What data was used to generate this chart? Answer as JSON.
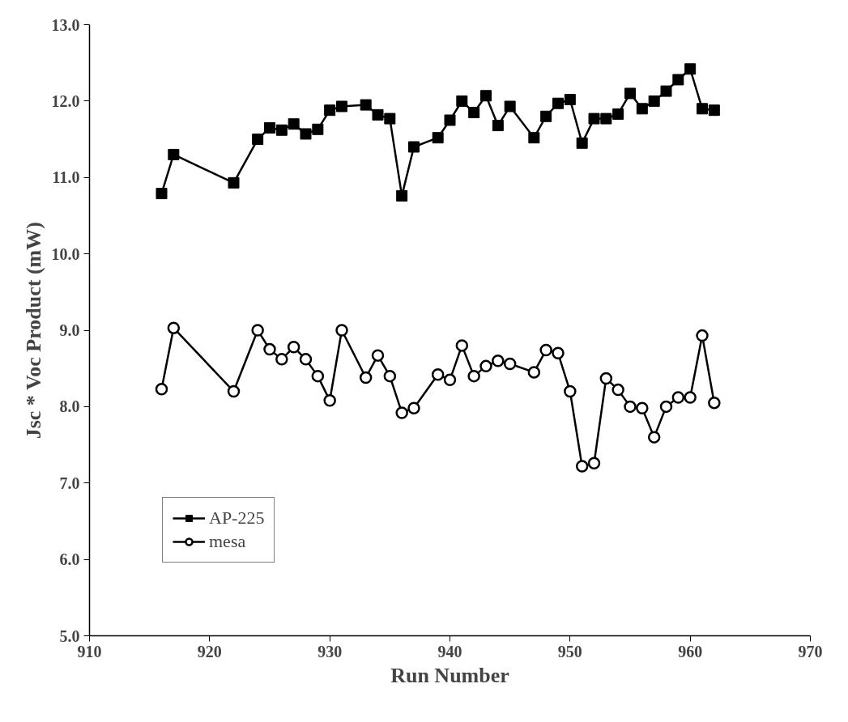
{
  "chart_data": {
    "type": "line",
    "xlabel": "Run Number",
    "ylabel": "Jsc * Voc Product (mW)",
    "xlim": [
      910,
      970
    ],
    "xticks": [
      910,
      920,
      930,
      940,
      950,
      960,
      970
    ],
    "ylim": [
      5,
      13
    ],
    "yticks": [
      {
        "value": 5,
        "label": "5.0"
      },
      {
        "value": 6,
        "label": "6.0"
      },
      {
        "value": 7,
        "label": "7.0"
      },
      {
        "value": 8,
        "label": "8.0"
      },
      {
        "value": 9,
        "label": "9.0"
      },
      {
        "value": 10,
        "label": "10.0"
      },
      {
        "value": 11,
        "label": "11.0"
      },
      {
        "value": 12,
        "label": "12.0"
      },
      {
        "value": 13,
        "label": "13.0"
      }
    ],
    "grid": false,
    "legend": "bottom left",
    "x": [
      916,
      917,
      922,
      924,
      925,
      926,
      927,
      928,
      929,
      930,
      931,
      933,
      934,
      935,
      936,
      937,
      939,
      940,
      941,
      942,
      943,
      944,
      945,
      947,
      948,
      949,
      950,
      951,
      952,
      953,
      954,
      955,
      956,
      957,
      958,
      959,
      960,
      961,
      962
    ],
    "series": [
      {
        "name": "AP-225",
        "color": "#000000",
        "marker": "square",
        "values": [
          10.79,
          11.3,
          10.93,
          11.5,
          11.65,
          11.62,
          11.7,
          11.57,
          11.63,
          11.88,
          11.93,
          11.95,
          11.82,
          11.77,
          10.76,
          11.4,
          11.52,
          11.75,
          12.0,
          11.85,
          12.07,
          11.68,
          11.93,
          11.52,
          11.8,
          11.97,
          12.02,
          11.45,
          11.77,
          11.77,
          11.83,
          12.1,
          11.9,
          12.0,
          12.13,
          12.28,
          12.42,
          11.9,
          11.88
        ]
      },
      {
        "name": "mesa",
        "color": "#000000",
        "marker": "circle",
        "values": [
          8.23,
          9.03,
          8.2,
          9.0,
          8.75,
          8.62,
          8.78,
          8.62,
          8.4,
          8.08,
          9.0,
          8.38,
          8.67,
          8.4,
          7.92,
          7.98,
          8.42,
          8.35,
          8.8,
          8.4,
          8.53,
          8.6,
          8.56,
          8.45,
          8.74,
          8.7,
          8.2,
          7.22,
          7.26,
          8.37,
          8.22,
          8.0,
          7.98,
          7.6,
          8.0,
          8.12,
          8.12,
          8.93,
          8.05
        ]
      }
    ]
  }
}
